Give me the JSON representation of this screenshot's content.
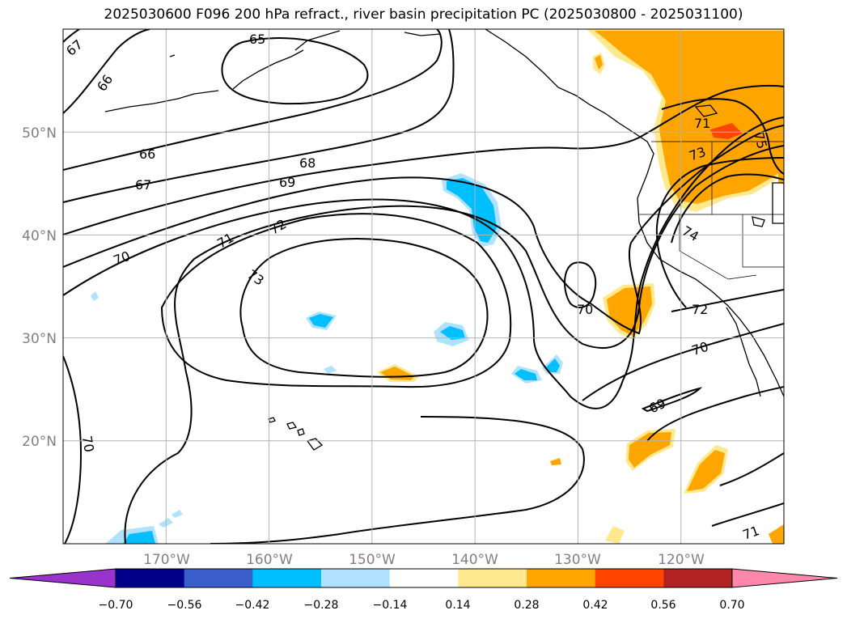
{
  "title": "2025030600 F096 200 hPa refract., river basin precipitation PC (2025030800 - 2025031100)",
  "map": {
    "lon_range": [
      -180,
      -110
    ],
    "lat_range": [
      10,
      60
    ],
    "grid_lons": [
      -170,
      -160,
      -150,
      -140,
      -130,
      -120
    ],
    "grid_lats": [
      20,
      30,
      40,
      50
    ],
    "lon_labels": [
      "170°W",
      "160°W",
      "150°W",
      "140°W",
      "130°W",
      "120°W"
    ],
    "lat_labels": [
      "20°N",
      "30°N",
      "40°N",
      "50°N"
    ],
    "label_color": "#808080"
  },
  "contour_labels": [
    "65",
    "66",
    "66",
    "67",
    "67",
    "68",
    "69",
    "70",
    "70",
    "70",
    "70",
    "71",
    "71",
    "71",
    "72",
    "72",
    "73",
    "73",
    "74",
    "75",
    "69"
  ],
  "colorbar": {
    "ticks": [
      "−0.70",
      "−0.56",
      "−0.42",
      "−0.28",
      "−0.14",
      "0.14",
      "0.28",
      "0.42",
      "0.56",
      "0.70"
    ],
    "colors": [
      "#9933cc",
      "#00008b",
      "#3a5fcd",
      "#00bfff",
      "#b0e2ff",
      "#ffffff",
      "#ffe98f",
      "#ffa500",
      "#ff4500",
      "#b22222",
      "#ff88aa"
    ]
  }
}
